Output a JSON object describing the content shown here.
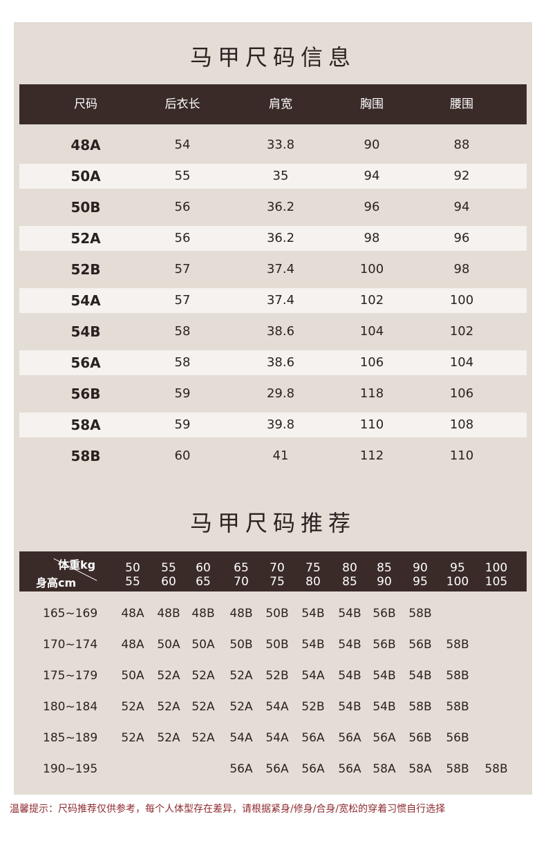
{
  "size_info": {
    "title": "马甲尺码信息",
    "headers": [
      "尺码",
      "后衣长",
      "肩宽",
      "胸围",
      "腰围"
    ],
    "rows": [
      [
        "48A",
        "54",
        "33.8",
        "90",
        "88"
      ],
      [
        "50A",
        "55",
        "35",
        "94",
        "92"
      ],
      [
        "50B",
        "56",
        "36.2",
        "96",
        "94"
      ],
      [
        "52A",
        "56",
        "36.2",
        "98",
        "96"
      ],
      [
        "52B",
        "57",
        "37.4",
        "100",
        "98"
      ],
      [
        "54A",
        "57",
        "37.4",
        "102",
        "100"
      ],
      [
        "54B",
        "58",
        "38.6",
        "104",
        "102"
      ],
      [
        "56A",
        "58",
        "38.6",
        "106",
        "104"
      ],
      [
        "56B",
        "59",
        "29.8",
        "118",
        "106"
      ],
      [
        "58A",
        "59",
        "39.8",
        "110",
        "108"
      ],
      [
        "58B",
        "60",
        "41",
        "112",
        "110"
      ]
    ]
  },
  "recommend": {
    "title": "马甲尺码推荐",
    "weight_label": "体重kg",
    "height_label": "身高cm",
    "weight_cols": [
      [
        "50",
        "55"
      ],
      [
        "55",
        "60"
      ],
      [
        "60",
        "65"
      ],
      [
        "65",
        "70"
      ],
      [
        "70",
        "75"
      ],
      [
        "75",
        "80"
      ],
      [
        "80",
        "85"
      ],
      [
        "85",
        "90"
      ],
      [
        "90",
        "95"
      ],
      [
        "95",
        "100"
      ],
      [
        "100",
        "105"
      ]
    ],
    "rows": [
      {
        "height": "165~169",
        "sizes": [
          "48A",
          "48B",
          "48B",
          "48B",
          "50B",
          "54B",
          "54B",
          "56B",
          "58B",
          "",
          ""
        ]
      },
      {
        "height": "170~174",
        "sizes": [
          "48A",
          "50A",
          "50A",
          "50B",
          "50B",
          "54B",
          "54B",
          "56B",
          "56B",
          "58B",
          ""
        ]
      },
      {
        "height": "175~179",
        "sizes": [
          "50A",
          "52A",
          "52A",
          "52A",
          "52B",
          "54A",
          "54B",
          "54B",
          "54B",
          "58B",
          ""
        ]
      },
      {
        "height": "180~184",
        "sizes": [
          "52A",
          "52A",
          "52A",
          "52A",
          "54A",
          "52B",
          "54B",
          "54B",
          "58B",
          "58B",
          ""
        ]
      },
      {
        "height": "185~189",
        "sizes": [
          "52A",
          "52A",
          "52A",
          "54A",
          "54A",
          "56A",
          "56A",
          "56A",
          "56B",
          "56B",
          ""
        ]
      },
      {
        "height": "190~195",
        "sizes": [
          "",
          "",
          "",
          "56A",
          "56A",
          "56A",
          "56A",
          "58A",
          "58A",
          "58B",
          "58B"
        ]
      }
    ]
  },
  "note": "温馨提示：尺码推荐仅供参考，每个人体型存在差异，请根据紧身/修身/合身/宽松的穿着习惯自行选择"
}
